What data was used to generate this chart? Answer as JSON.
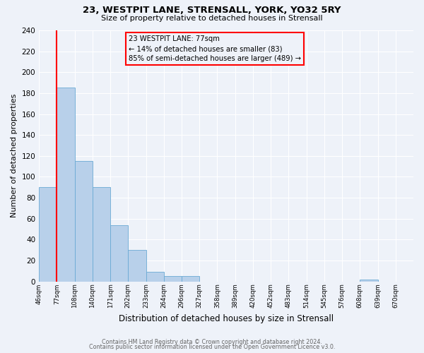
{
  "title": "23, WESTPIT LANE, STRENSALL, YORK, YO32 5RY",
  "subtitle": "Size of property relative to detached houses in Strensall",
  "xlabel": "Distribution of detached houses by size in Strensall",
  "ylabel": "Number of detached properties",
  "bar_values": [
    90,
    185,
    115,
    90,
    54,
    30,
    9,
    5,
    5,
    0,
    0,
    0,
    0,
    0,
    0,
    0,
    0,
    0,
    2,
    0,
    0
  ],
  "bin_labels": [
    "46sqm",
    "77sqm",
    "108sqm",
    "140sqm",
    "171sqm",
    "202sqm",
    "233sqm",
    "264sqm",
    "296sqm",
    "327sqm",
    "358sqm",
    "389sqm",
    "420sqm",
    "452sqm",
    "483sqm",
    "514sqm",
    "545sqm",
    "576sqm",
    "608sqm",
    "639sqm",
    "670sqm"
  ],
  "bar_color": "#b8d0ea",
  "bar_edge_color": "#6aaad4",
  "property_bar_index": 1,
  "property_line_x": 1,
  "ylim": [
    0,
    240
  ],
  "yticks": [
    0,
    20,
    40,
    60,
    80,
    100,
    120,
    140,
    160,
    180,
    200,
    220,
    240
  ],
  "annotation_title": "23 WESTPIT LANE: 77sqm",
  "annotation_line1": "← 14% of detached houses are smaller (83)",
  "annotation_line2": "85% of semi-detached houses are larger (489) →",
  "footer_line1": "Contains HM Land Registry data © Crown copyright and database right 2024.",
  "footer_line2": "Contains public sector information licensed under the Open Government Licence v3.0.",
  "background_color": "#eef2f9",
  "grid_color": "#ffffff"
}
